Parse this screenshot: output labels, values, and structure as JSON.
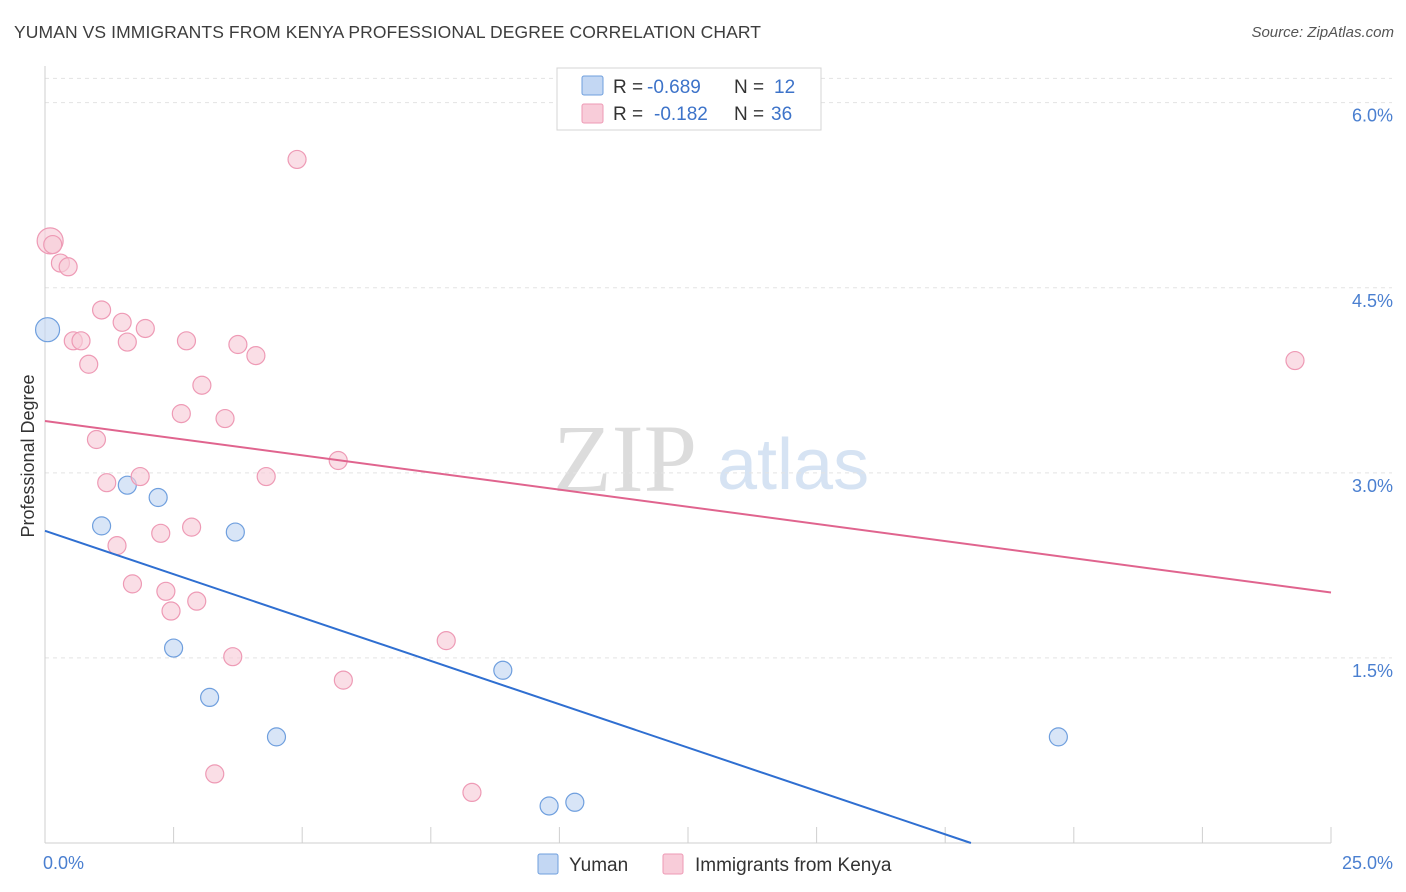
{
  "title": "YUMAN VS IMMIGRANTS FROM KENYA PROFESSIONAL DEGREE CORRELATION CHART",
  "source": "Source: ZipAtlas.com",
  "watermark": {
    "zip": "ZIP",
    "atlas": "atlas"
  },
  "chart_data": {
    "type": "scatter",
    "ylabel": "Professional Degree",
    "xlim": [
      0,
      25
    ],
    "ylim": [
      0,
      6.2
    ],
    "x_tick_labels": [
      {
        "value": 0,
        "label": "0.0%"
      },
      {
        "value": 25,
        "label": "25.0%"
      }
    ],
    "y_tick_labels": [
      {
        "value": 1.5,
        "label": "1.5%"
      },
      {
        "value": 3.0,
        "label": "3.0%"
      },
      {
        "value": 4.5,
        "label": "4.5%"
      },
      {
        "value": 6.0,
        "label": "6.0%"
      }
    ],
    "x_minor_ticks": [
      2.5,
      5,
      7.5,
      10,
      12.5,
      15,
      17.5,
      20,
      22.5,
      25
    ],
    "grid": true,
    "legend_position": "top-center",
    "legend": [
      {
        "r_label": "R =",
        "r": "-0.689",
        "n_label": "N =",
        "n": "12"
      },
      {
        "r_label": "R =",
        "r": "-0.182",
        "n_label": "N =",
        "n": "36"
      }
    ],
    "bottom_legend": [
      "Yuman",
      "Immigrants from Kenya"
    ],
    "series": [
      {
        "name": "Yuman",
        "color": "#6f9fde",
        "fill": "#c3d7f3",
        "line_color": "#2f6fd1",
        "trend": [
          [
            0,
            2.53
          ],
          [
            18,
            0
          ]
        ],
        "points": [
          [
            0.05,
            4.16,
            12
          ],
          [
            1.1,
            2.57,
            9
          ],
          [
            1.6,
            2.9,
            9
          ],
          [
            2.2,
            2.8,
            9
          ],
          [
            3.7,
            2.52,
            9
          ],
          [
            2.5,
            1.58,
            9
          ],
          [
            3.2,
            1.18,
            9
          ],
          [
            4.5,
            0.86,
            9
          ],
          [
            8.9,
            1.4,
            9
          ],
          [
            9.8,
            0.3,
            9
          ],
          [
            10.3,
            0.33,
            9
          ],
          [
            19.7,
            0.86,
            9
          ]
        ]
      },
      {
        "name": "Immigrants from Kenya",
        "color": "#ee9ab5",
        "fill": "#f8ccd9",
        "line_color": "#e0648e",
        "trend": [
          [
            0,
            3.42
          ],
          [
            25,
            2.03
          ]
        ],
        "points": [
          [
            0.1,
            4.88,
            13
          ],
          [
            0.3,
            4.7,
            9
          ],
          [
            0.45,
            4.67,
            9
          ],
          [
            0.55,
            4.07,
            9
          ],
          [
            0.7,
            4.07,
            9
          ],
          [
            0.85,
            3.88,
            9
          ],
          [
            1.0,
            3.27,
            9
          ],
          [
            1.1,
            4.32,
            9
          ],
          [
            1.2,
            2.92,
            9
          ],
          [
            1.4,
            2.41,
            9
          ],
          [
            1.5,
            4.22,
            9
          ],
          [
            1.6,
            4.06,
            9
          ],
          [
            1.7,
            2.1,
            9
          ],
          [
            1.85,
            2.97,
            9
          ],
          [
            1.95,
            4.17,
            9
          ],
          [
            2.25,
            2.51,
            9
          ],
          [
            2.35,
            2.04,
            9
          ],
          [
            2.45,
            1.88,
            9
          ],
          [
            2.65,
            3.48,
            9
          ],
          [
            2.75,
            4.07,
            9
          ],
          [
            2.85,
            2.56,
            9
          ],
          [
            2.95,
            1.96,
            9
          ],
          [
            3.05,
            3.71,
            9
          ],
          [
            3.3,
            0.56,
            9
          ],
          [
            3.5,
            3.44,
            9
          ],
          [
            3.65,
            1.51,
            9
          ],
          [
            3.75,
            4.04,
            9
          ],
          [
            4.1,
            3.95,
            9
          ],
          [
            4.3,
            2.97,
            9
          ],
          [
            4.9,
            5.54,
            9
          ],
          [
            5.7,
            3.1,
            9
          ],
          [
            5.8,
            1.32,
            9
          ],
          [
            7.8,
            1.64,
            9
          ],
          [
            8.3,
            0.41,
            9
          ],
          [
            24.3,
            3.91,
            9
          ],
          [
            0.15,
            4.85,
            9
          ]
        ]
      }
    ]
  }
}
